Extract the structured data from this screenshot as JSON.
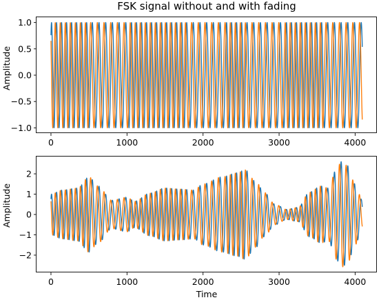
{
  "chart_data": [
    {
      "type": "line",
      "title": "FSK signal without and with fading",
      "xlabel": "",
      "ylabel": "Amplitude",
      "xlim": [
        -190,
        4286
      ],
      "ylim": [
        -1.1,
        1.1
      ],
      "xticks": [
        0,
        1000,
        2000,
        3000,
        4000
      ],
      "yticks": [
        -1.0,
        -0.5,
        0.0,
        0.5,
        1.0
      ],
      "ytick_labels": [
        "−1.0",
        "−0.5",
        "0.0",
        "0.5",
        "1.0"
      ],
      "grid": false,
      "series": [
        {
          "color": "#1f77b4",
          "signal": "fsk",
          "n_samples": 4096,
          "amplitude": 1.0,
          "symbol_length_samples": 256,
          "tone_periods_samples": [
            66,
            88
          ],
          "phase_rad": -0.9
        },
        {
          "color": "#ff7f0e",
          "signal": "fsk",
          "n_samples": 4096,
          "amplitude": 1.0,
          "symbol_length_samples": 256,
          "tone_periods_samples": [
            66,
            88
          ],
          "phase_rad": 0.67
        }
      ]
    },
    {
      "type": "line",
      "title": "",
      "xlabel": "Time",
      "ylabel": "Amplitude",
      "xlim": [
        -190,
        4286
      ],
      "ylim": [
        -2.85,
        2.85
      ],
      "xticks": [
        0,
        1000,
        2000,
        3000,
        4000
      ],
      "yticks": [
        -2,
        -1,
        0,
        1,
        2
      ],
      "ytick_labels": [
        "−2",
        "−1",
        "0",
        "1",
        "2"
      ],
      "grid": false,
      "envelope": [
        [
          0,
          1.0
        ],
        [
          150,
          1.2
        ],
        [
          350,
          1.3
        ],
        [
          500,
          1.85
        ],
        [
          620,
          1.4
        ],
        [
          800,
          0.7
        ],
        [
          1000,
          0.85
        ],
        [
          1100,
          0.65
        ],
        [
          1300,
          1.05
        ],
        [
          1500,
          1.3
        ],
        [
          1700,
          1.25
        ],
        [
          1880,
          1.2
        ],
        [
          2000,
          1.5
        ],
        [
          2250,
          1.85
        ],
        [
          2450,
          2.05
        ],
        [
          2550,
          2.2
        ],
        [
          2700,
          1.6
        ],
        [
          2800,
          1.1
        ],
        [
          2950,
          0.5
        ],
        [
          3100,
          0.25
        ],
        [
          3250,
          0.35
        ],
        [
          3400,
          1.1
        ],
        [
          3550,
          1.4
        ],
        [
          3650,
          1.3
        ],
        [
          3750,
          2.2
        ],
        [
          3820,
          2.6
        ],
        [
          3900,
          2.4
        ],
        [
          4000,
          1.5
        ],
        [
          4095,
          0.7
        ]
      ],
      "series": [
        {
          "color": "#1f77b4",
          "signal": "faded_fsk",
          "phase_rad": -0.9
        },
        {
          "color": "#ff7f0e",
          "signal": "faded_fsk",
          "phase_rad": 0.67
        }
      ]
    }
  ]
}
